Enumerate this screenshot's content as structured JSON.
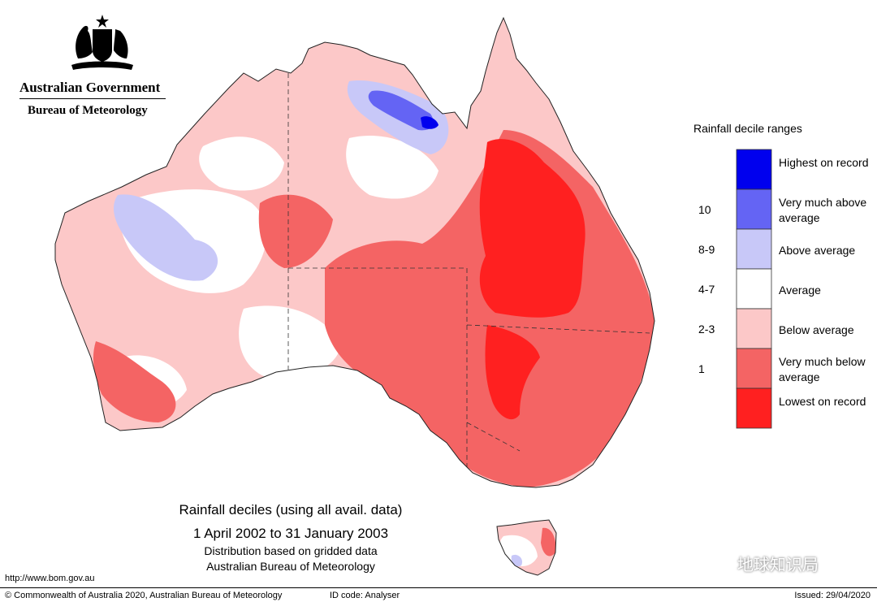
{
  "header": {
    "org_name": "Australian Government",
    "agency_name": "Bureau of Meteorology"
  },
  "legend": {
    "title": "Rainfall decile ranges",
    "items": [
      {
        "range": "",
        "label": "Highest on record",
        "color": "#0000ee"
      },
      {
        "range": "10",
        "label": "Very much above average",
        "color": "#6464f4"
      },
      {
        "range": "8-9",
        "label": "Above average",
        "color": "#c8c8f8"
      },
      {
        "range": "4-7",
        "label": "Average",
        "color": "#ffffff"
      },
      {
        "range": "2-3",
        "label": "Below average",
        "color": "#fcc8c8"
      },
      {
        "range": "1",
        "label": "Very much below average",
        "color": "#f46464"
      },
      {
        "range": "",
        "label": "Lowest on record",
        "color": "#ff2020"
      }
    ]
  },
  "caption": {
    "line1": "Rainfall deciles (using all avail. data)",
    "line2": "1 April 2002 to 31 January 2003",
    "line3": "Distribution based on gridded data",
    "line4": "Australian Bureau of Meteorology"
  },
  "footer": {
    "url": "http://www.bom.gov.au",
    "copyright": "© Commonwealth of Australia 2020, Australian Bureau of Meteorology",
    "id_code": "ID code: Analyser",
    "issued": "Issued: 29/04/2020"
  },
  "watermark": {
    "text": "地球知识局"
  },
  "icons": [
    "coat-of-arms-icon",
    "watermark-logo-icon"
  ]
}
